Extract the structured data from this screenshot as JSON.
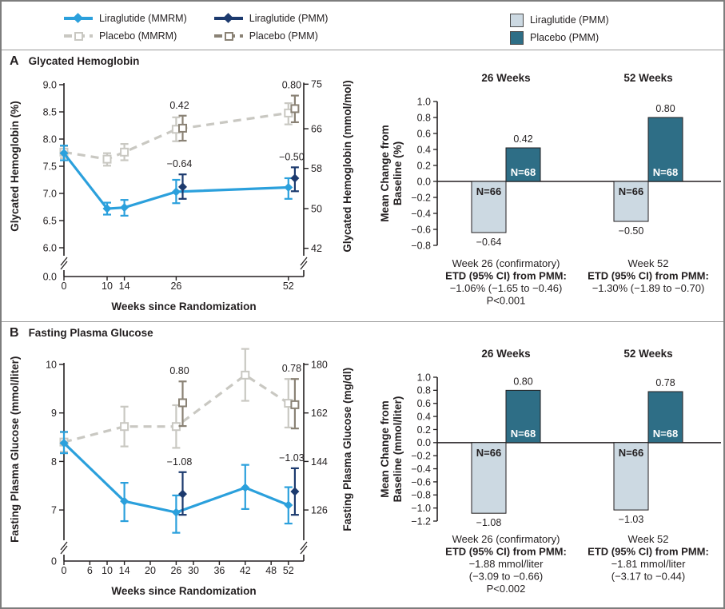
{
  "colors": {
    "liraglutide_mmrm": "#2BA0DC",
    "liraglutide_pmm": "#1C3A6E",
    "placebo_mmrm": "#C9C8C2",
    "placebo_pmm": "#8A8275",
    "bar_liraglutide": "#CCD9E2",
    "bar_placebo": "#2E6E86",
    "text": "#231F20",
    "border": "#7D7D7D"
  },
  "legend_lines": {
    "items": [
      {
        "label": "Liraglutide (MMRM)",
        "marker": "diamond",
        "dash": false,
        "color": "#2BA0DC"
      },
      {
        "label": "Placebo (MMRM)",
        "marker": "square",
        "dash": true,
        "color": "#C9C8C2"
      },
      {
        "label": "Liraglutide (PMM)",
        "marker": "diamond",
        "dash": false,
        "color": "#1C3A6E"
      },
      {
        "label": "Placebo (PMM)",
        "marker": "square",
        "dash": true,
        "color": "#8A8275"
      }
    ]
  },
  "legend_bars": {
    "items": [
      {
        "label": "Liraglutide (PMM)",
        "color": "#CCD9E2"
      },
      {
        "label": "Placebo (PMM)",
        "color": "#2E6E86"
      }
    ]
  },
  "panels": [
    {
      "letter": "A",
      "title": "Glycated Hemoglobin"
    },
    {
      "letter": "B",
      "title": "Fasting Plasma Glucose"
    }
  ],
  "chart_data": [
    {
      "panel": "A",
      "type": "line",
      "xlabel": "Weeks since Randomization",
      "ylabel": "Glycated Hemoglobin (%)",
      "ylabel_right": "Glycated Hemoglobin (mmol/mol)",
      "x_ticks": [
        0,
        10,
        14,
        26,
        52
      ],
      "y_ticks": [
        "6.0",
        "6.5",
        "7.0",
        "7.5",
        "8.0",
        "8.5",
        "9.0"
      ],
      "y_min": 6.0,
      "y_max": 9.0,
      "y_base_label": "0.0",
      "right_ticks": [
        {
          "label": "42",
          "at": 5.99
        },
        {
          "label": "50",
          "at": 6.72
        },
        {
          "label": "58",
          "at": 7.46
        },
        {
          "label": "66",
          "at": 8.19
        },
        {
          "label": "75",
          "at": 9.01
        }
      ],
      "series": [
        {
          "name": "Placebo (MMRM)",
          "key": "placebo-mmrm",
          "marker": "square",
          "dash": true,
          "color": "#C9C8C2",
          "points": [
            {
              "x": 0,
              "y": 7.76,
              "lo": 7.65,
              "hi": 7.87
            },
            {
              "x": 10,
              "y": 7.63,
              "lo": 7.51,
              "hi": 7.74
            },
            {
              "x": 14,
              "y": 7.76,
              "lo": 7.61,
              "hi": 7.91
            },
            {
              "x": 26,
              "y": 8.18,
              "lo": 7.96,
              "hi": 8.4
            },
            {
              "x": 52,
              "y": 8.48,
              "lo": 8.27,
              "hi": 8.66
            }
          ]
        },
        {
          "name": "Placebo (PMM)",
          "key": "placebo-pmm",
          "marker": "square",
          "line": false,
          "color": "#8A8275",
          "points": [
            {
              "x": 27.5,
              "y": 8.2,
              "lo": 7.97,
              "hi": 8.43,
              "label": "0.42"
            },
            {
              "x": 53.5,
              "y": 8.56,
              "lo": 8.31,
              "hi": 8.8,
              "label": "0.80"
            }
          ]
        },
        {
          "name": "Liraglutide (MMRM)",
          "key": "liraglutide-mmrm",
          "marker": "diamond",
          "dash": false,
          "color": "#2BA0DC",
          "points": [
            {
              "x": 0,
              "y": 7.74,
              "lo": 7.61,
              "hi": 7.88
            },
            {
              "x": 10,
              "y": 6.72,
              "lo": 6.61,
              "hi": 6.83
            },
            {
              "x": 14,
              "y": 6.74,
              "lo": 6.59,
              "hi": 6.88
            },
            {
              "x": 26,
              "y": 7.03,
              "lo": 6.82,
              "hi": 7.25
            },
            {
              "x": 52,
              "y": 7.11,
              "lo": 6.9,
              "hi": 7.28
            }
          ]
        },
        {
          "name": "Liraglutide (PMM)",
          "key": "liraglutide-pmm",
          "marker": "diamond",
          "line": false,
          "color": "#1C3A6E",
          "points": [
            {
              "x": 27.5,
              "y": 7.12,
              "lo": 6.9,
              "hi": 7.35,
              "label": "−0.64"
            },
            {
              "x": 53.5,
              "y": 7.28,
              "lo": 7.04,
              "hi": 7.48,
              "label": "−0.50"
            }
          ]
        }
      ]
    },
    {
      "panel": "A",
      "type": "bar",
      "ylabel_lines": [
        "Mean Change from",
        "Baseline (%)"
      ],
      "y_min": -0.8,
      "y_max": 1.0,
      "y_step": 0.2,
      "colors": [
        "#CCD9E2",
        "#2E6E86"
      ],
      "groups": [
        {
          "header": "26 Weeks",
          "bars": [
            {
              "name": "Liraglutide (PMM)",
              "value": -0.64,
              "value_label": "−0.64",
              "n_label": "N=66"
            },
            {
              "name": "Placebo (PMM)",
              "value": 0.42,
              "value_label": "0.42",
              "n_label": "N=68"
            }
          ],
          "footer": [
            {
              "text": "Week 26 (confirmatory)",
              "bold": false
            },
            {
              "text": "ETD (95% CI) from PMM:",
              "bold": true
            },
            {
              "text": "−1.06% (−1.65 to −0.46)",
              "bold": false
            },
            {
              "text": "P<0.001",
              "bold": false
            }
          ]
        },
        {
          "header": "52 Weeks",
          "bars": [
            {
              "name": "Liraglutide (PMM)",
              "value": -0.5,
              "value_label": "−0.50",
              "n_label": "N=66"
            },
            {
              "name": "Placebo (PMM)",
              "value": 0.8,
              "value_label": "0.80",
              "n_label": "N=68"
            }
          ],
          "footer": [
            {
              "text": "Week 52",
              "bold": false
            },
            {
              "text": "ETD (95% CI) from PMM:",
              "bold": true
            },
            {
              "text": "−1.30% (−1.89 to −0.70)",
              "bold": false
            }
          ]
        }
      ]
    },
    {
      "panel": "B",
      "type": "line",
      "xlabel": "Weeks since Randomization",
      "ylabel": "Fasting Plasma Glucose (mmol/liter)",
      "ylabel_right": "Fasting Plasma Glucose (mg/dl)",
      "x_ticks": [
        0,
        6,
        10,
        14,
        20,
        26,
        30,
        36,
        42,
        48,
        52
      ],
      "y_ticks": [
        "7",
        "8",
        "9",
        "10"
      ],
      "y_min": 6.5,
      "y_max": 10.0,
      "y_base_label": "0",
      "right_ticks": [
        {
          "label": "126",
          "at": 7.0
        },
        {
          "label": "144",
          "at": 8.0
        },
        {
          "label": "162",
          "at": 9.0
        },
        {
          "label": "180",
          "at": 10.0
        }
      ],
      "series": [
        {
          "name": "Placebo (MMRM)",
          "key": "placebo-mmrm",
          "marker": "square",
          "dash": true,
          "color": "#C9C8C2",
          "points": [
            {
              "x": 0,
              "y": 8.4,
              "lo": 8.2,
              "hi": 8.6
            },
            {
              "x": 14,
              "y": 8.72,
              "lo": 8.31,
              "hi": 9.13
            },
            {
              "x": 26,
              "y": 8.72,
              "lo": 8.28,
              "hi": 9.16
            },
            {
              "x": 42,
              "y": 9.78,
              "lo": 9.25,
              "hi": 10.32
            },
            {
              "x": 52,
              "y": 9.2,
              "lo": 8.7,
              "hi": 9.7
            }
          ]
        },
        {
          "name": "Placebo (PMM)",
          "key": "placebo-pmm",
          "marker": "square",
          "line": false,
          "color": "#8A8275",
          "points": [
            {
              "x": 27.5,
              "y": 9.21,
              "lo": 8.73,
              "hi": 9.65,
              "label": "0.80"
            },
            {
              "x": 53.5,
              "y": 9.17,
              "lo": 8.68,
              "hi": 9.7,
              "label": "0.78"
            }
          ]
        },
        {
          "name": "Liraglutide (MMRM)",
          "key": "liraglutide-mmrm",
          "marker": "diamond",
          "dash": false,
          "color": "#2BA0DC",
          "points": [
            {
              "x": 0,
              "y": 8.38,
              "lo": 8.17,
              "hi": 8.61
            },
            {
              "x": 14,
              "y": 7.18,
              "lo": 6.77,
              "hi": 7.56
            },
            {
              "x": 26,
              "y": 6.95,
              "lo": 6.53,
              "hi": 7.3
            },
            {
              "x": 42,
              "y": 7.46,
              "lo": 7.02,
              "hi": 7.93
            },
            {
              "x": 52,
              "y": 7.1,
              "lo": 6.72,
              "hi": 7.47
            }
          ]
        },
        {
          "name": "Liraglutide (PMM)",
          "key": "liraglutide-pmm",
          "marker": "diamond",
          "line": false,
          "color": "#1C3A6E",
          "points": [
            {
              "x": 27.5,
              "y": 7.33,
              "lo": 6.9,
              "hi": 7.78,
              "label": "−1.08"
            },
            {
              "x": 53.5,
              "y": 7.38,
              "lo": 6.9,
              "hi": 7.86,
              "label": "−1.03"
            }
          ]
        }
      ]
    },
    {
      "panel": "B",
      "type": "bar",
      "ylabel_lines": [
        "Mean Change from",
        "Baseline (mmol/liter)"
      ],
      "y_min": -1.2,
      "y_max": 1.0,
      "y_step": 0.2,
      "colors": [
        "#CCD9E2",
        "#2E6E86"
      ],
      "groups": [
        {
          "header": "26 Weeks",
          "bars": [
            {
              "name": "Liraglutide (PMM)",
              "value": -1.08,
              "value_label": "−1.08",
              "n_label": "N=66"
            },
            {
              "name": "Placebo (PMM)",
              "value": 0.8,
              "value_label": "0.80",
              "n_label": "N=68"
            }
          ],
          "footer": [
            {
              "text": "Week 26 (confirmatory)",
              "bold": false
            },
            {
              "text": "ETD (95% CI) from PMM:",
              "bold": true
            },
            {
              "text": "−1.88 mmol/liter",
              "bold": false
            },
            {
              "text": "(−3.09 to −0.66)",
              "bold": false
            },
            {
              "text": "P<0.002",
              "bold": false
            }
          ]
        },
        {
          "header": "52 Weeks",
          "bars": [
            {
              "name": "Liraglutide (PMM)",
              "value": -1.03,
              "value_label": "−1.03",
              "n_label": "N=66"
            },
            {
              "name": "Placebo (PMM)",
              "value": 0.78,
              "value_label": "0.78",
              "n_label": "N=68"
            }
          ],
          "footer": [
            {
              "text": "Week 52",
              "bold": false
            },
            {
              "text": "ETD (95% CI) from PMM:",
              "bold": true
            },
            {
              "text": "−1.81 mmol/liter",
              "bold": false
            },
            {
              "text": "(−3.17 to −0.44)",
              "bold": false
            }
          ]
        }
      ]
    }
  ]
}
